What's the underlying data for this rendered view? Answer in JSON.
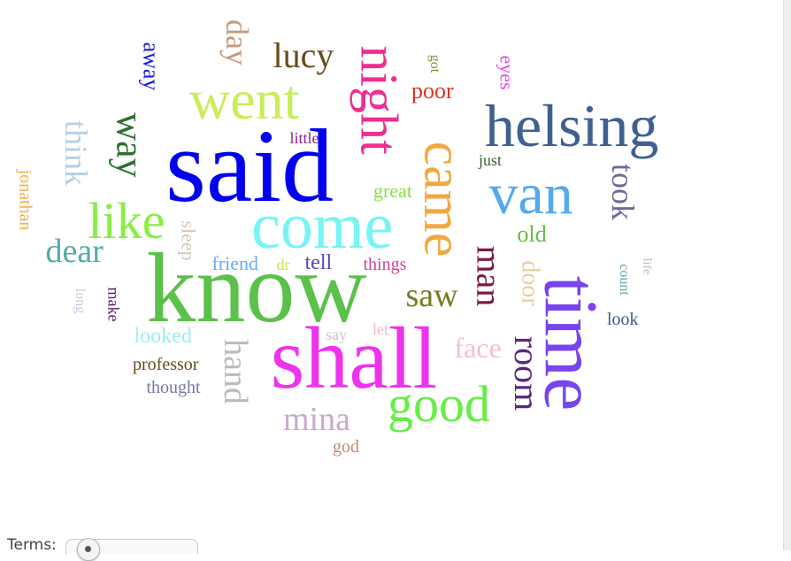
{
  "terms_label": "Terms:",
  "slider": {
    "value": 0.1
  },
  "words": [
    {
      "text": "said",
      "color": "#0000ee"
    },
    {
      "text": "know",
      "color": "#5cc14a"
    },
    {
      "text": "shall",
      "color": "#ee33ee"
    },
    {
      "text": "come",
      "color": "#77f4f4"
    },
    {
      "text": "time",
      "color": "#7744ee"
    },
    {
      "text": "came",
      "color": "#f0a840"
    },
    {
      "text": "night",
      "color": "#ee2e92"
    },
    {
      "text": "helsing",
      "color": "#3f6090"
    },
    {
      "text": "van",
      "color": "#55aaee"
    },
    {
      "text": "good",
      "color": "#66ee44"
    },
    {
      "text": "went",
      "color": "#c8ee5a"
    },
    {
      "text": "like",
      "color": "#88ee44"
    },
    {
      "text": "way",
      "color": "#2f6f2f"
    },
    {
      "text": "lucy",
      "color": "#6a4a1a"
    },
    {
      "text": "man",
      "color": "#7a1a4a"
    },
    {
      "text": "room",
      "color": "#5a2a7a"
    },
    {
      "text": "mina",
      "color": "#c8aacf"
    },
    {
      "text": "dear",
      "color": "#55aaaa"
    },
    {
      "text": "hand",
      "color": "#bbbbbb"
    },
    {
      "text": "saw",
      "color": "#7a7a20"
    },
    {
      "text": "took",
      "color": "#6a6a9a"
    },
    {
      "text": "think",
      "color": "#b5d0e5"
    },
    {
      "text": "day",
      "color": "#c89a80"
    },
    {
      "text": "face",
      "color": "#f5bfcf"
    },
    {
      "text": "door",
      "color": "#e8cfa0"
    },
    {
      "text": "poor",
      "color": "#dd3322"
    },
    {
      "text": "away",
      "color": "#1a1add"
    },
    {
      "text": "old",
      "color": "#66bb44"
    },
    {
      "text": "tell",
      "color": "#5544cc"
    },
    {
      "text": "looked",
      "color": "#99f0f0"
    },
    {
      "text": "friend",
      "color": "#66aaff"
    },
    {
      "text": "great",
      "color": "#88dd44"
    },
    {
      "text": "things",
      "color": "#cc4499"
    },
    {
      "text": "sleep",
      "color": "#d9c8b4"
    },
    {
      "text": "professor",
      "color": "#6a4a1a"
    },
    {
      "text": "thought",
      "color": "#7777aa"
    },
    {
      "text": "jonathan",
      "color": "#f2b04a"
    },
    {
      "text": "eyes",
      "color": "#ee44ee"
    },
    {
      "text": "little",
      "color": "#882288"
    },
    {
      "text": "look",
      "color": "#445588"
    },
    {
      "text": "just",
      "color": "#2f5f2f"
    },
    {
      "text": "make",
      "color": "#5a1a6a"
    },
    {
      "text": "god",
      "color": "#c08a70"
    },
    {
      "text": "count",
      "color": "#66aaaa"
    },
    {
      "text": "dr",
      "color": "#cce055"
    },
    {
      "text": "long",
      "color": "#c0ccdd"
    },
    {
      "text": "say",
      "color": "#cfc0d8"
    },
    {
      "text": "let",
      "color": "#f5b5c5"
    },
    {
      "text": "got",
      "color": "#8a8a3a"
    },
    {
      "text": "life",
      "color": "#bbbbbb"
    }
  ]
}
